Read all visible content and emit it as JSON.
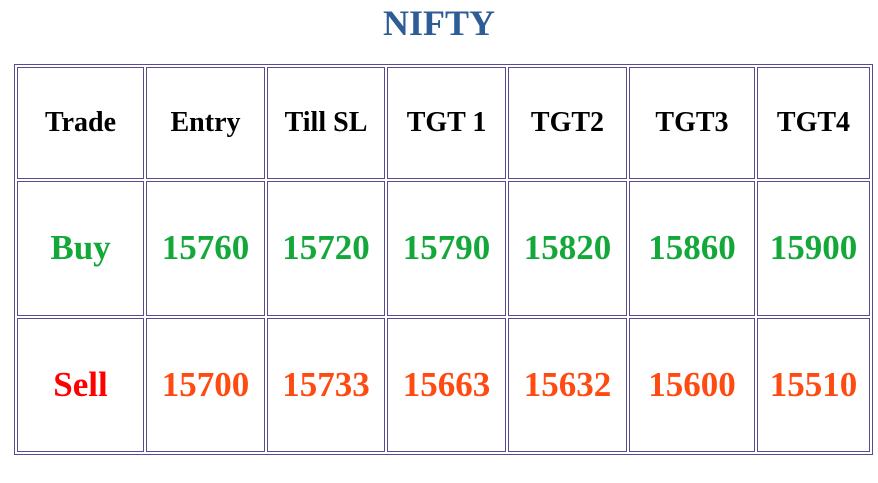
{
  "title": "NIFTY",
  "table": {
    "header": [
      "Trade",
      "Entry",
      "Till SL",
      "TGT 1",
      "TGT2",
      "TGT3",
      "TGT4"
    ],
    "rows": [
      [
        "Buy",
        15760,
        15720,
        15790,
        15820,
        15860,
        15900
      ],
      [
        "Sell",
        15700,
        15733,
        15663,
        15632,
        15600,
        15510
      ]
    ]
  }
}
